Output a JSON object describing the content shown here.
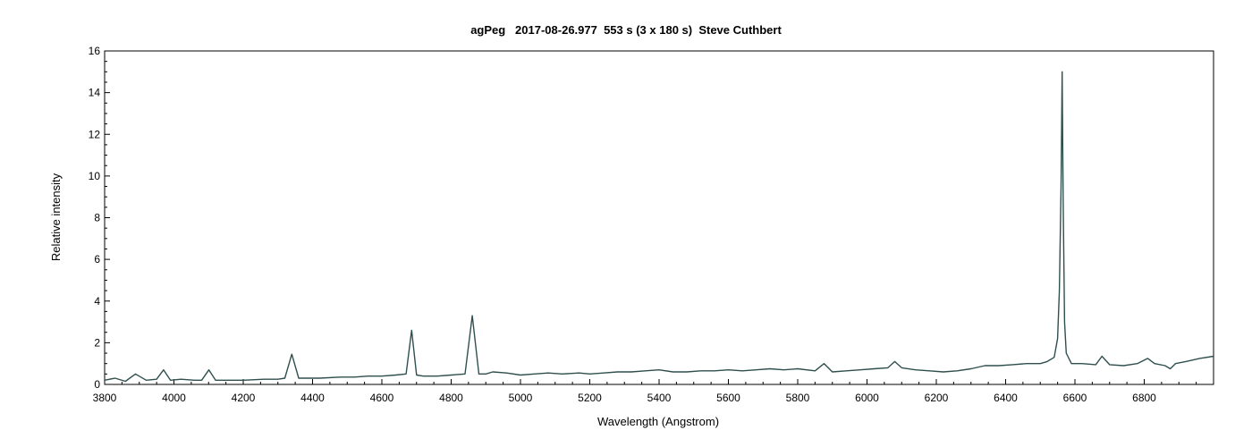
{
  "chart_data": {
    "type": "line",
    "title": "agPeg   2017-08-26.977  553 s (3 x 180 s)  Steve Cuthbert",
    "xlabel": "Wavelength (Angstrom)",
    "ylabel": "Relative intensity",
    "xlim": [
      3800,
      7000
    ],
    "ylim": [
      0,
      16
    ],
    "xticks": [
      3800,
      4000,
      4200,
      4400,
      4600,
      4800,
      5000,
      5200,
      5400,
      5600,
      5800,
      6000,
      6200,
      6400,
      6600,
      6800
    ],
    "yticks": [
      0,
      2,
      4,
      6,
      8,
      10,
      12,
      14,
      16
    ],
    "grid": false,
    "line_color": "#2f4f4f",
    "series": [
      {
        "x": [
          3800,
          3830,
          3860,
          3889,
          3920,
          3950,
          3970,
          3990,
          4020,
          4060,
          4080,
          4101,
          4120,
          4160,
          4200,
          4260,
          4300,
          4320,
          4340,
          4360,
          4380,
          4420,
          4480,
          4520,
          4560,
          4600,
          4640,
          4670,
          4686,
          4700,
          4720,
          4760,
          4800,
          4840,
          4861,
          4880,
          4900,
          4920,
          4960,
          5000,
          5040,
          5080,
          5120,
          5169,
          5200,
          5240,
          5280,
          5320,
          5360,
          5400,
          5440,
          5480,
          5520,
          5560,
          5600,
          5640,
          5680,
          5720,
          5760,
          5800,
          5850,
          5876,
          5900,
          5940,
          5980,
          6020,
          6060,
          6080,
          6100,
          6140,
          6180,
          6220,
          6260,
          6300,
          6340,
          6380,
          6420,
          6460,
          6500,
          6520,
          6540,
          6550,
          6555,
          6560,
          6563,
          6566,
          6570,
          6575,
          6590,
          6620,
          6660,
          6678,
          6700,
          6740,
          6780,
          6810,
          6830,
          6860,
          6875,
          6890,
          6920,
          6960,
          7000
        ],
        "values": [
          0.2,
          0.3,
          0.15,
          0.5,
          0.2,
          0.25,
          0.7,
          0.2,
          0.25,
          0.2,
          0.2,
          0.7,
          0.2,
          0.2,
          0.2,
          0.25,
          0.25,
          0.3,
          1.45,
          0.3,
          0.3,
          0.3,
          0.35,
          0.35,
          0.4,
          0.4,
          0.45,
          0.5,
          2.6,
          0.45,
          0.4,
          0.4,
          0.45,
          0.5,
          3.3,
          0.5,
          0.5,
          0.6,
          0.55,
          0.45,
          0.5,
          0.55,
          0.5,
          0.55,
          0.5,
          0.55,
          0.6,
          0.6,
          0.65,
          0.7,
          0.6,
          0.6,
          0.65,
          0.65,
          0.7,
          0.65,
          0.7,
          0.75,
          0.7,
          0.75,
          0.65,
          1.0,
          0.6,
          0.65,
          0.7,
          0.75,
          0.8,
          1.1,
          0.8,
          0.7,
          0.65,
          0.6,
          0.65,
          0.75,
          0.9,
          0.9,
          0.95,
          1.0,
          1.0,
          1.1,
          1.3,
          2.2,
          4.5,
          9.5,
          15.0,
          9.0,
          3.0,
          1.5,
          1.0,
          1.0,
          0.95,
          1.35,
          0.95,
          0.9,
          1.0,
          1.25,
          1.0,
          0.9,
          0.75,
          1.0,
          1.1,
          1.25,
          1.35
        ]
      }
    ]
  }
}
